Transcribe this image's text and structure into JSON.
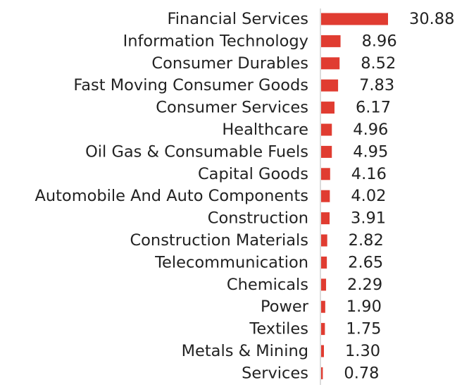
{
  "chart_data": {
    "type": "bar",
    "orientation": "horizontal",
    "title": "",
    "xlabel": "",
    "ylabel": "",
    "xlim": [
      0,
      30.88
    ],
    "grid": false,
    "legend": "none",
    "bar_color": "#e03c31",
    "categories": [
      "Financial Services",
      "Information Technology",
      "Consumer Durables",
      "Fast Moving Consumer Goods",
      "Consumer Services",
      "Healthcare",
      "Oil Gas & Consumable Fuels",
      "Capital Goods",
      "Automobile And Auto Components",
      "Construction",
      "Construction Materials",
      "Telecommunication",
      "Chemicals",
      "Power",
      "Textiles",
      "Metals & Mining",
      "Services"
    ],
    "values": [
      30.88,
      8.96,
      8.52,
      7.83,
      6.17,
      4.96,
      4.95,
      4.16,
      4.02,
      3.91,
      2.82,
      2.65,
      2.29,
      1.9,
      1.75,
      1.3,
      0.78
    ],
    "value_labels": [
      "30.88",
      "8.96",
      "8.52",
      "7.83",
      "6.17",
      "4.96",
      "4.95",
      "4.16",
      "4.02",
      "3.91",
      "2.82",
      "2.65",
      "2.29",
      "1.90",
      "1.75",
      "1.30",
      "0.78"
    ]
  }
}
